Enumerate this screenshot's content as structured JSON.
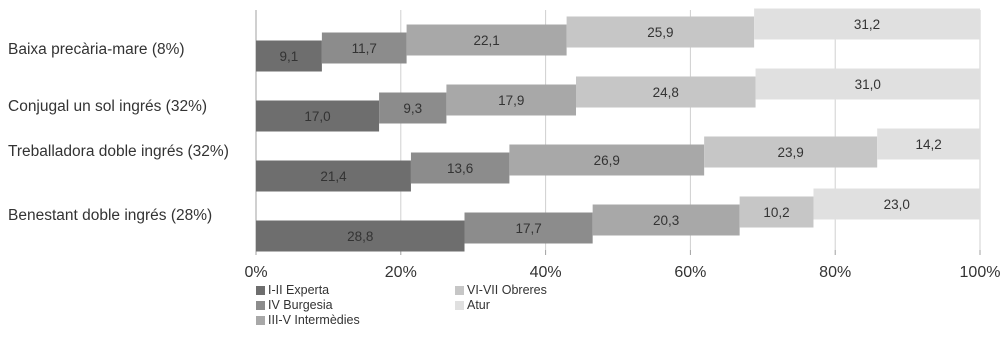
{
  "chart_data": {
    "type": "bar",
    "orientation": "horizontal",
    "stacked": true,
    "percent": true,
    "categories": [
      "Baixa precària-mare (8%)",
      "Conjugal un sol ingrés (32%)",
      "Treballadora doble ingrés (32%)",
      "Benestant doble ingrés (28%)"
    ],
    "series": [
      {
        "name": "I-II Experta",
        "color": "#6e6e6e",
        "values": [
          9.1,
          17.0,
          21.4,
          28.8
        ],
        "labels": [
          "9,1",
          "17,0",
          "21,4",
          "28,8"
        ]
      },
      {
        "name": "IV Burgesia",
        "color": "#8c8c8c",
        "values": [
          11.7,
          9.3,
          13.6,
          17.7
        ],
        "labels": [
          "11,7",
          "9,3",
          "13,6",
          "17,7"
        ]
      },
      {
        "name": "III-V Intermèdies",
        "color": "#a8a8a8",
        "values": [
          22.1,
          17.9,
          26.9,
          20.3
        ],
        "labels": [
          "22,1",
          "17,9",
          "26,9",
          "20,3"
        ]
      },
      {
        "name": "VI-VII Obreres",
        "color": "#c6c6c6",
        "values": [
          25.9,
          24.8,
          23.9,
          10.2
        ],
        "labels": [
          "25,9",
          "24,8",
          "23,9",
          "10,2"
        ]
      },
      {
        "name": "Atur",
        "color": "#e0e0e0",
        "values": [
          31.2,
          31.0,
          14.2,
          23.0
        ],
        "labels": [
          "31,2",
          "31,0",
          "14,2",
          "23,0"
        ]
      }
    ],
    "xlim": [
      0,
      100
    ],
    "xticks": [
      "0%",
      "20%",
      "40%",
      "60%",
      "80%",
      "100%"
    ],
    "grid": "vertical",
    "legend_position": "bottom-left"
  }
}
